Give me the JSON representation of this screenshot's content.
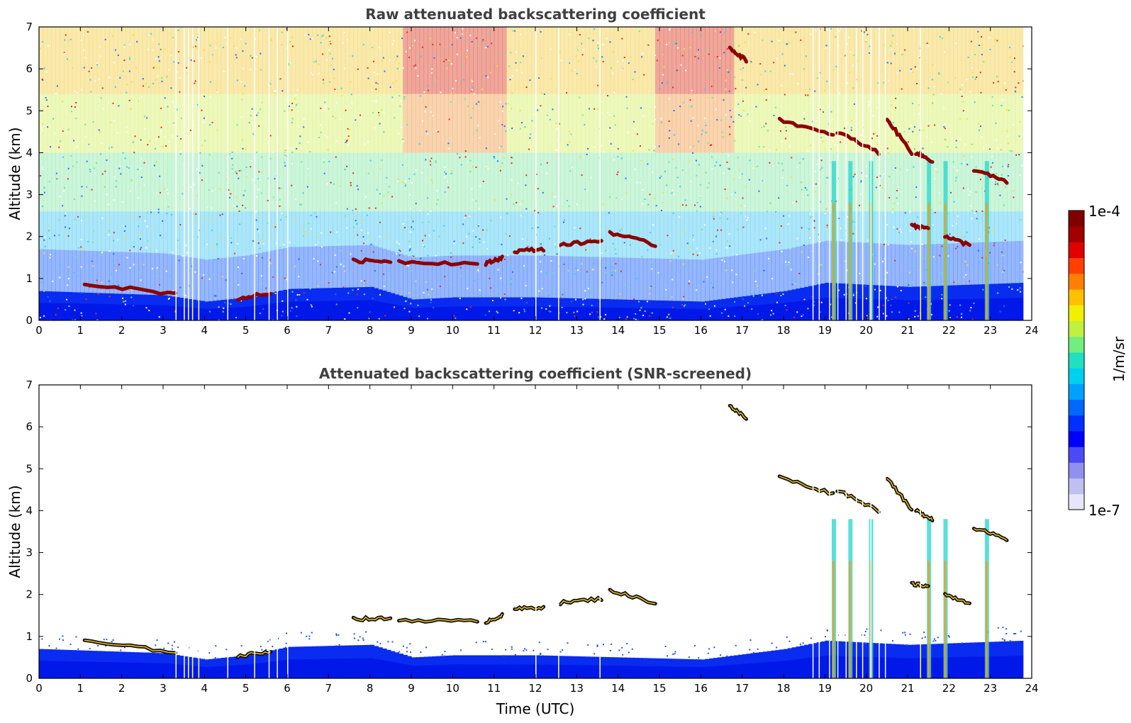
{
  "chart_data": [
    {
      "type": "heatmap",
      "title": "Raw attenuated backscattering coefficient",
      "xlabel": "",
      "ylabel": "Altitude (km)",
      "xlim": [
        0,
        24
      ],
      "ylim": [
        0,
        7
      ],
      "xticks": [
        "0",
        "1",
        "2",
        "3",
        "4",
        "5",
        "6",
        "7",
        "8",
        "9",
        "10",
        "11",
        "12",
        "13",
        "14",
        "15",
        "16",
        "17",
        "18",
        "19",
        "20",
        "21",
        "22",
        "23",
        "24"
      ],
      "yticks": [
        "0",
        "1",
        "2",
        "3",
        "4",
        "5",
        "6",
        "7"
      ],
      "features": {
        "boundary_layer": [
          {
            "t": 0,
            "h": 0.7
          },
          {
            "t": 3,
            "h": 0.6
          },
          {
            "t": 4,
            "h": 0.45
          },
          {
            "t": 5,
            "h": 0.55
          },
          {
            "t": 6,
            "h": 0.75
          },
          {
            "t": 8,
            "h": 0.8
          },
          {
            "t": 9,
            "h": 0.5
          },
          {
            "t": 10,
            "h": 0.55
          },
          {
            "t": 12,
            "h": 0.55
          },
          {
            "t": 14,
            "h": 0.5
          },
          {
            "t": 16,
            "h": 0.45
          },
          {
            "t": 18,
            "h": 0.7
          },
          {
            "t": 19,
            "h": 0.9
          },
          {
            "t": 21,
            "h": 0.8
          },
          {
            "t": 23.8,
            "h": 0.9
          }
        ],
        "cloud_layers": [
          {
            "t0": 1.1,
            "t1": 3.3,
            "h0": 0.88,
            "h1": 0.63
          },
          {
            "t0": 4.8,
            "t1": 5.6,
            "h0": 0.52,
            "h1": 0.65
          },
          {
            "t0": 7.6,
            "t1": 8.5,
            "h0": 1.42,
            "h1": 1.42
          },
          {
            "t0": 8.7,
            "t1": 10.6,
            "h0": 1.4,
            "h1": 1.35
          },
          {
            "t0": 10.8,
            "t1": 11.2,
            "h0": 1.35,
            "h1": 1.5
          },
          {
            "t0": 11.5,
            "t1": 12.2,
            "h0": 1.65,
            "h1": 1.7
          },
          {
            "t0": 12.6,
            "t1": 13.6,
            "h0": 1.8,
            "h1": 1.9
          },
          {
            "t0": 13.8,
            "t1": 14.9,
            "h0": 2.1,
            "h1": 1.8
          },
          {
            "t0": 16.7,
            "t1": 17.1,
            "h0": 6.5,
            "h1": 6.2
          },
          {
            "t0": 17.9,
            "t1": 19.2,
            "h0": 4.8,
            "h1": 4.4
          },
          {
            "t0": 19.3,
            "t1": 20.3,
            "h0": 4.5,
            "h1": 4.0
          },
          {
            "t0": 20.5,
            "t1": 21.1,
            "h0": 4.8,
            "h1": 4.0
          },
          {
            "t0": 21.2,
            "t1": 21.6,
            "h0": 4.0,
            "h1": 3.8
          },
          {
            "t0": 21.9,
            "t1": 22.5,
            "h0": 2.0,
            "h1": 1.8
          },
          {
            "t0": 22.6,
            "t1": 23.4,
            "h0": 3.6,
            "h1": 3.3
          },
          {
            "t0": 21.1,
            "t1": 21.5,
            "h0": 2.25,
            "h1": 2.2
          }
        ],
        "precip_streaks": [
          19.2,
          19.6,
          20.1,
          21.5,
          21.9,
          22.9
        ]
      }
    },
    {
      "type": "heatmap",
      "title": "Attenuated backscattering coefficient (SNR-screened)",
      "xlabel": "Time (UTC)",
      "ylabel": "Altitude (km)",
      "xlim": [
        0,
        24
      ],
      "ylim": [
        0,
        7
      ],
      "xticks": [
        "0",
        "1",
        "2",
        "3",
        "4",
        "5",
        "6",
        "7",
        "8",
        "9",
        "10",
        "11",
        "12",
        "13",
        "14",
        "15",
        "16",
        "17",
        "18",
        "19",
        "20",
        "21",
        "22",
        "23",
        "24"
      ],
      "yticks": [
        "0",
        "1",
        "2",
        "3",
        "4",
        "5",
        "6",
        "7"
      ]
    }
  ],
  "colorbar": {
    "label": "1/m/sr",
    "max_label": "1e-4",
    "min_label": "1e-7",
    "colors": [
      "#e6e6f8",
      "#c0c0f0",
      "#9090ee",
      "#4b4bf5",
      "#0000ff",
      "#0030ff",
      "#0068ff",
      "#00a0ff",
      "#00d0f0",
      "#20e0c0",
      "#70ef80",
      "#c0f040",
      "#f0f000",
      "#ffc000",
      "#ff8000",
      "#ff4000",
      "#e00000",
      "#a00000",
      "#800000"
    ]
  }
}
